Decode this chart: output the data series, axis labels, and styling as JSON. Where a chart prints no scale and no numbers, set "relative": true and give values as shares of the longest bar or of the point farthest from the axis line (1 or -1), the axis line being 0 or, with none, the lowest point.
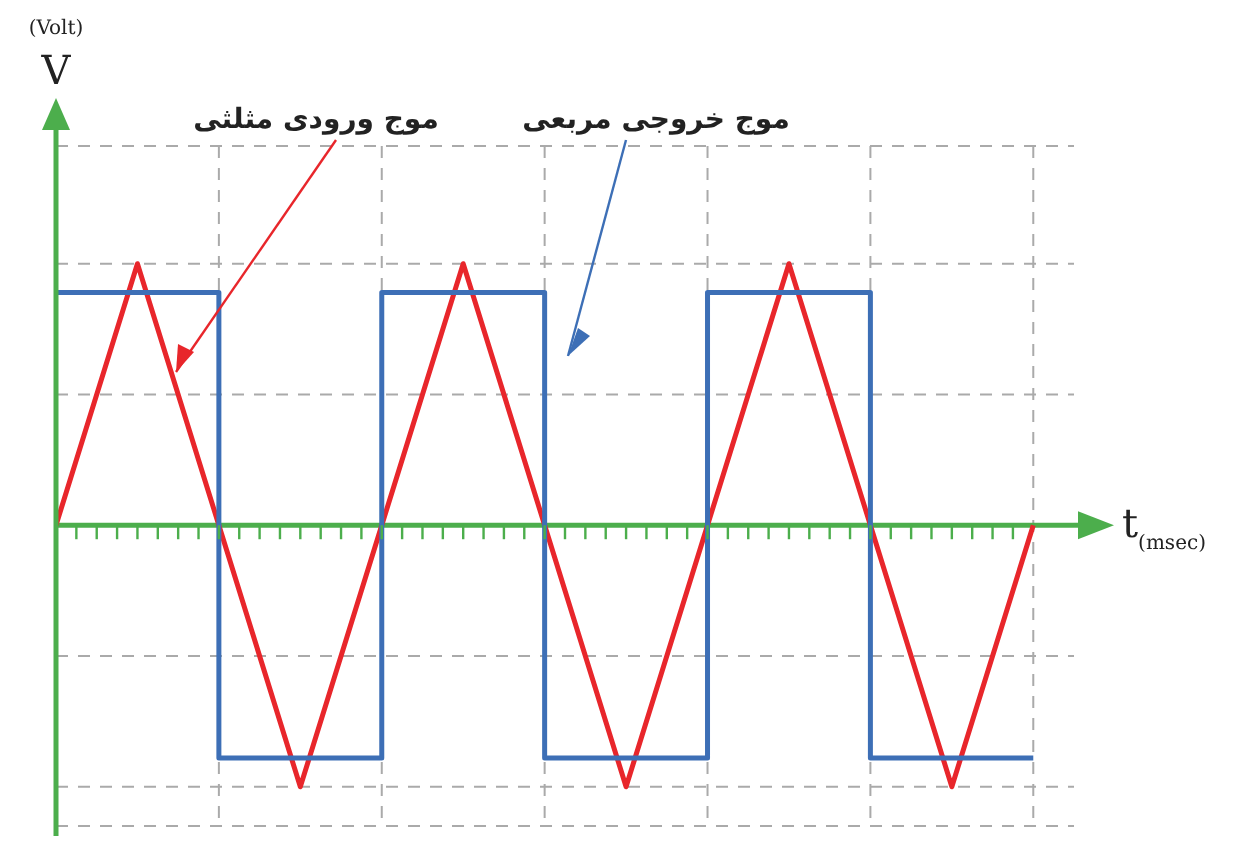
{
  "chart_data": {
    "type": "line",
    "relative": true,
    "xlabel": "t$_{(msec)}$",
    "ylabel": "$^{(Volt)}$V",
    "categories": [
      null,
      null,
      null,
      null,
      null,
      null,
      null,
      null,
      null,
      null,
      null,
      null,
      null
    ],
    "grid": true,
    "ref_lines": [
      {
        "axis": "y",
        "value": 0,
        "color": "#4cae4c"
      }
    ],
    "marker": "none",
    "line_style": "solid",
    "series": [
      {
        "name": "موج ورودی مثلثی",
        "color": "#e8262b",
        "values": [
          0,
          1,
          0,
          -1,
          0,
          1,
          0,
          -1,
          0,
          1,
          0,
          -1,
          0
        ]
      },
      {
        "name": "موج خروجی مربعی",
        "type": "step",
        "color": "#3d6fb6",
        "values": [
          0.89,
          0.89,
          -0.89,
          -0.89,
          0.89,
          0.89,
          -0.89,
          -0.89,
          0.89,
          0.89,
          -0.89,
          -0.89,
          -0.89
        ]
      }
    ]
  }
}
